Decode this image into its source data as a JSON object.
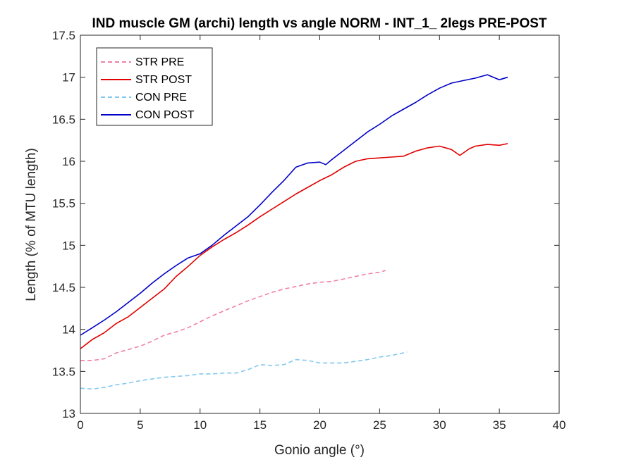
{
  "chart_data": {
    "type": "line",
    "title": "IND muscle GM (archi) length vs angle NORM - INT_1_ 2legs PRE-POST",
    "xlabel": "Gonio angle (°)",
    "ylabel": "Length (% of MTU length)",
    "xlim": [
      0,
      40
    ],
    "ylim": [
      13,
      17.5
    ],
    "x_ticks": [
      "0",
      "5",
      "10",
      "15",
      "20",
      "25",
      "30",
      "35",
      "40"
    ],
    "y_ticks": [
      "13",
      "13.5",
      "14",
      "14.5",
      "15",
      "15.5",
      "16",
      "16.5",
      "17",
      "17.5"
    ],
    "grid": false,
    "legend_position": "top-left",
    "series": [
      {
        "name": "STR PRE",
        "color": "#f080a8",
        "style": "dashed",
        "x": [
          0,
          1,
          2,
          3,
          4,
          5,
          6,
          7,
          8,
          9,
          10,
          11,
          12,
          13,
          14,
          15,
          16,
          17,
          18,
          19,
          20,
          21,
          22,
          23,
          24,
          25,
          25.5
        ],
        "y": [
          13.63,
          13.63,
          13.65,
          13.72,
          13.76,
          13.8,
          13.86,
          13.93,
          13.97,
          14.02,
          14.09,
          14.16,
          14.22,
          14.28,
          14.34,
          14.39,
          14.44,
          14.48,
          14.51,
          14.54,
          14.56,
          14.57,
          14.6,
          14.63,
          14.66,
          14.68,
          14.7
        ]
      },
      {
        "name": "STR POST",
        "color": "#e00000",
        "style": "solid",
        "x": [
          0,
          1,
          2,
          3,
          4,
          5,
          6,
          7,
          8,
          9,
          10,
          11,
          12,
          13,
          14,
          15,
          16,
          17,
          18,
          19,
          20,
          21,
          22,
          23,
          24,
          25,
          26,
          27,
          28,
          29,
          30,
          31,
          31.7,
          32.5,
          33,
          34,
          35,
          35.7
        ],
        "y": [
          13.77,
          13.88,
          13.96,
          14.07,
          14.15,
          14.26,
          14.37,
          14.48,
          14.63,
          14.75,
          14.88,
          14.98,
          15.07,
          15.15,
          15.24,
          15.34,
          15.43,
          15.52,
          15.61,
          15.69,
          15.77,
          15.84,
          15.93,
          16.0,
          16.03,
          16.04,
          16.05,
          16.06,
          16.12,
          16.16,
          16.18,
          16.14,
          16.07,
          16.15,
          16.18,
          16.2,
          16.19,
          16.21
        ]
      },
      {
        "name": "CON PRE",
        "color": "#80c8f0",
        "style": "dashed",
        "x": [
          0,
          1,
          2,
          3,
          4,
          5,
          6,
          7,
          8,
          9,
          10,
          11,
          12,
          13,
          14,
          15,
          16,
          17,
          18,
          19,
          20,
          21,
          22,
          23,
          24,
          25,
          26,
          27.3
        ],
        "y": [
          13.3,
          13.29,
          13.31,
          13.34,
          13.36,
          13.39,
          13.41,
          13.43,
          13.44,
          13.45,
          13.47,
          13.47,
          13.48,
          13.48,
          13.52,
          13.58,
          13.57,
          13.58,
          13.64,
          13.63,
          13.6,
          13.6,
          13.6,
          13.62,
          13.64,
          13.67,
          13.69,
          13.73
        ]
      },
      {
        "name": "CON POST",
        "color": "#0000c8",
        "style": "solid",
        "x": [
          0,
          1,
          2,
          3,
          4,
          5,
          6,
          7,
          8,
          9,
          10,
          11,
          12,
          13,
          14,
          15,
          16,
          17,
          18,
          19,
          20,
          20.5,
          21,
          22,
          23,
          24,
          25,
          26,
          27,
          28,
          29,
          30,
          31,
          32,
          33,
          34,
          35,
          35.7
        ],
        "y": [
          13.93,
          14.02,
          14.11,
          14.21,
          14.32,
          14.43,
          14.55,
          14.66,
          14.76,
          14.85,
          14.9,
          15.0,
          15.12,
          15.23,
          15.34,
          15.48,
          15.63,
          15.77,
          15.93,
          15.98,
          15.99,
          15.96,
          16.02,
          16.13,
          16.24,
          16.35,
          16.44,
          16.54,
          16.62,
          16.7,
          16.79,
          16.87,
          16.93,
          16.96,
          16.99,
          17.03,
          16.97,
          17.0
        ]
      }
    ]
  }
}
